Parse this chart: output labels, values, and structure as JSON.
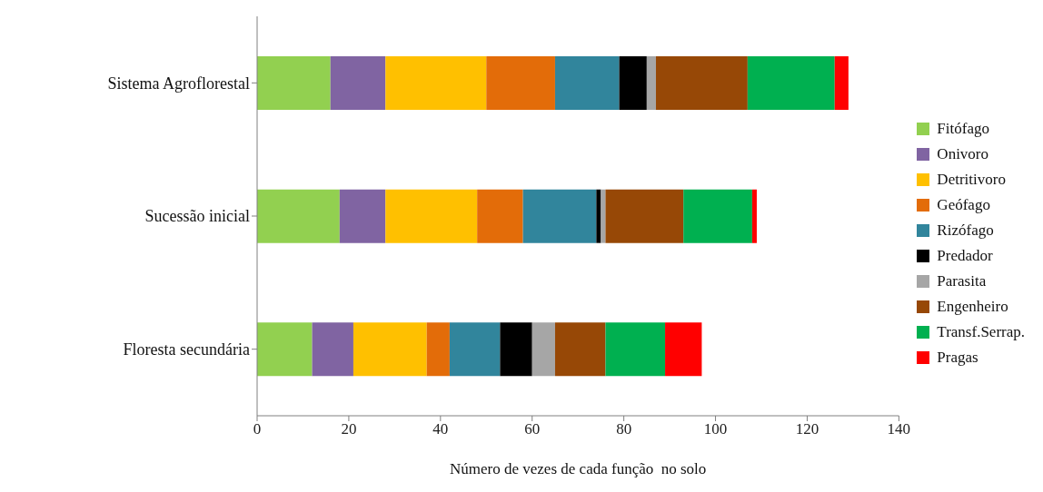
{
  "chart_data": {
    "type": "bar",
    "orientation": "horizontal",
    "stacked": true,
    "categories": [
      "Sistema Agroflorestal",
      "Sucessão inicial",
      "Floresta secundária"
    ],
    "series": [
      {
        "name": "Fitófago",
        "color": "#92d050",
        "values": [
          16,
          18,
          12
        ]
      },
      {
        "name": "Onivoro",
        "color": "#8064a2",
        "values": [
          12,
          10,
          9
        ]
      },
      {
        "name": "Detritivoro",
        "color": "#ffc000",
        "values": [
          22,
          20,
          16
        ]
      },
      {
        "name": "Geófago",
        "color": "#e36c09",
        "values": [
          15,
          10,
          5
        ]
      },
      {
        "name": "Rizófago",
        "color": "#31859c",
        "values": [
          14,
          16,
          11
        ]
      },
      {
        "name": "Predador",
        "color": "#000000",
        "values": [
          6,
          1,
          7
        ]
      },
      {
        "name": "Parasita",
        "color": "#a6a6a6",
        "values": [
          2,
          1,
          5
        ]
      },
      {
        "name": "Engenheiro",
        "color": "#974806",
        "values": [
          20,
          17,
          11
        ]
      },
      {
        "name": "Transf.Serrap.",
        "color": "#00b050",
        "values": [
          19,
          15,
          13
        ]
      },
      {
        "name": "Pragas",
        "color": "#ff0000",
        "values": [
          3,
          1,
          8
        ]
      }
    ],
    "xlabel": "Número de vezes de cada função  no solo",
    "xlim": [
      0,
      140
    ],
    "xticks": [
      0,
      20,
      40,
      60,
      80,
      100,
      120,
      140
    ],
    "grid": false,
    "legend": "right"
  }
}
